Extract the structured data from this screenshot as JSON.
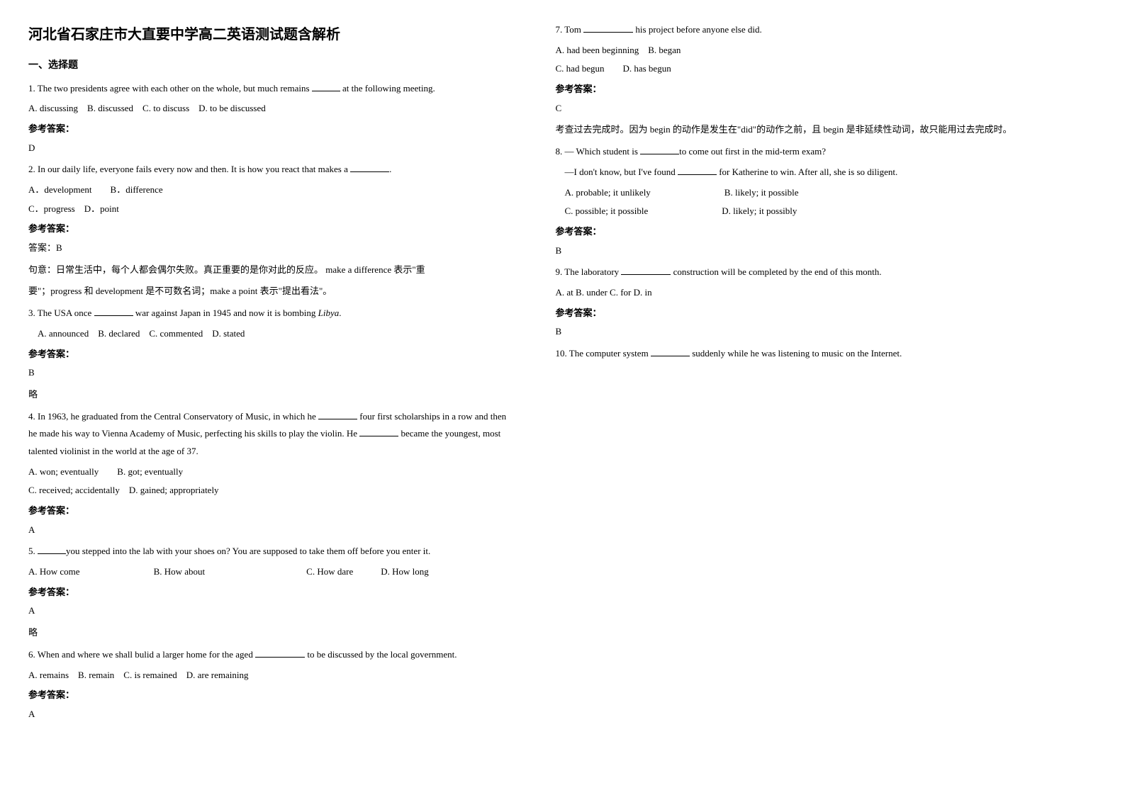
{
  "title": "河北省石家庄市大直要中学高二英语测试题含解析",
  "section1_title": "一、选择题",
  "q1": {
    "stem_a": "1. The two presidents agree with each other on the whole, but much remains ",
    "stem_b": " at the following meeting.",
    "opts": "A. discussing B. discussed C. to discuss D. to be discussed",
    "ans_label": "参考答案：",
    "ans": "D"
  },
  "q2": {
    "stem_a": "2. In our daily life, everyone fails every now and then. It is how you react that makes a ",
    "stem_b": ".",
    "optsA": "A．development  B．difference",
    "optsB": "C．progress D．point",
    "ans_label": "参考答案：",
    "ans_head": "答案：B",
    "expl1": "句意：日常生活中，每个人都会偶尔失败。真正重要的是你对此的反应。 make a difference 表示\"重",
    "expl2": "要\"；progress 和 development 是不可数名词；make a point 表示\"提出看法\"。"
  },
  "q3": {
    "stem_a": "3. The USA once ",
    "stem_b": " war against Japan in 1945 and now it is bombing ",
    "stem_c": "Libya",
    "stem_d": ".",
    "opts": " A. announced B. declared C. commented D. stated",
    "ans_label": "参考答案：",
    "ans": "B",
    "note": "略"
  },
  "q4": {
    "stem_a": "4. In 1963, he graduated from the Central Conservatory of Music, in which he ",
    "stem_b": " four first scholarships in a row and then he made his way to Vienna Academy of Music, perfecting his skills to play the violin. He ",
    "stem_c": " became the youngest, most talented violinist in the world at the age of 37.",
    "optsA": "A. won; eventually  B. got; eventually",
    "optsB": "C. received; accidentally D. gained; appropriately",
    "ans_label": "参考答案：",
    "ans": "A"
  },
  "q5": {
    "stem_a": "5. ",
    "stem_b": "you stepped into the lab with your shoes on? You are supposed to take them off before you enter it.",
    "optsL": "A. How come        B. How about           C. How dare   D. How long",
    "ans_label": "参考答案：",
    "ans": "A",
    "note": "略"
  },
  "q6": {
    "stem_a": "6. When and where we shall bulid a larger home for the aged ",
    "stem_b": " to be discussed by the local government.",
    "opts": "A. remains B. remain C. is remained D. are remaining",
    "ans_label": "参考答案：",
    "ans": "A"
  },
  "q7": {
    "stem_a": "7. Tom ",
    "stem_b": " his project before anyone else did.",
    "optsA": "A. had been beginning B. began",
    "optsB": "C. had begun  D. has begun",
    "ans_label": "参考答案：",
    "ans": "C",
    "expl": "考查过去完成时。因为 begin 的动作是发生在\"did\"的动作之前，且 begin 是非延续性动词，故只能用过去完成时。"
  },
  "q8": {
    "stem_a": "8. — Which student is ",
    "stem_b": "to come out first in the mid-term exam?",
    "stem2_a": " —I don't know, but I've found ",
    "stem2_b": " for Katherine to win. After all, she is so diligent.",
    "optsA": " A. probable; it unlikely        B. likely; it possible",
    "optsB": " C. possible; it possible        D. likely; it possibly",
    "ans_label": "参考答案：",
    "ans": "B"
  },
  "q9": {
    "stem_a": "9. The laboratory ",
    "stem_b": " construction will be completed by the end of this month.",
    "opts": "A. at  B. under  C. for  D. in",
    "ans_label": "参考答案：",
    "ans": "B"
  },
  "q10": {
    "stem_a": "10. The computer system ",
    "stem_b": " suddenly while he was listening to music on the Internet."
  }
}
